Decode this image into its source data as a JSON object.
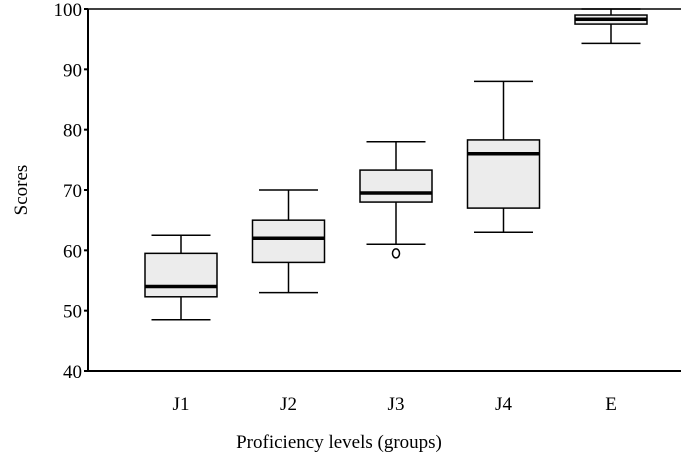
{
  "chart_data": {
    "type": "boxplot",
    "xlabel": "Proficiency levels (groups)",
    "ylabel": "Scores",
    "ylim": [
      40,
      100
    ],
    "yticks": [
      40,
      50,
      60,
      70,
      80,
      90,
      100
    ],
    "ytick_labels": [
      "40",
      "50",
      "60",
      "70",
      "80",
      "90",
      "100"
    ],
    "categories": [
      "J1",
      "J2",
      "J3",
      "J4",
      "E"
    ],
    "boxes": [
      {
        "label": "J1",
        "whisker_low": 48.5,
        "q1": 52.3,
        "median": 54.0,
        "q3": 59.5,
        "whisker_high": 62.5,
        "outliers": []
      },
      {
        "label": "J2",
        "whisker_low": 53.0,
        "q1": 58.0,
        "median": 62.0,
        "q3": 65.0,
        "whisker_high": 70.0,
        "outliers": []
      },
      {
        "label": "J3",
        "whisker_low": 61.0,
        "q1": 68.0,
        "median": 69.5,
        "q3": 73.3,
        "whisker_high": 78.0,
        "outliers": [
          59.5
        ]
      },
      {
        "label": "J4",
        "whisker_low": 63.0,
        "q1": 67.0,
        "median": 76.0,
        "q3": 78.3,
        "whisker_high": 88.0,
        "outliers": []
      },
      {
        "label": "E",
        "whisker_low": 94.3,
        "q1": 97.5,
        "median": 98.3,
        "q3": 99.0,
        "whisker_high": 100.0,
        "outliers": []
      }
    ],
    "box_fill": "#ececec",
    "line_color": "#000000",
    "grid": false
  }
}
